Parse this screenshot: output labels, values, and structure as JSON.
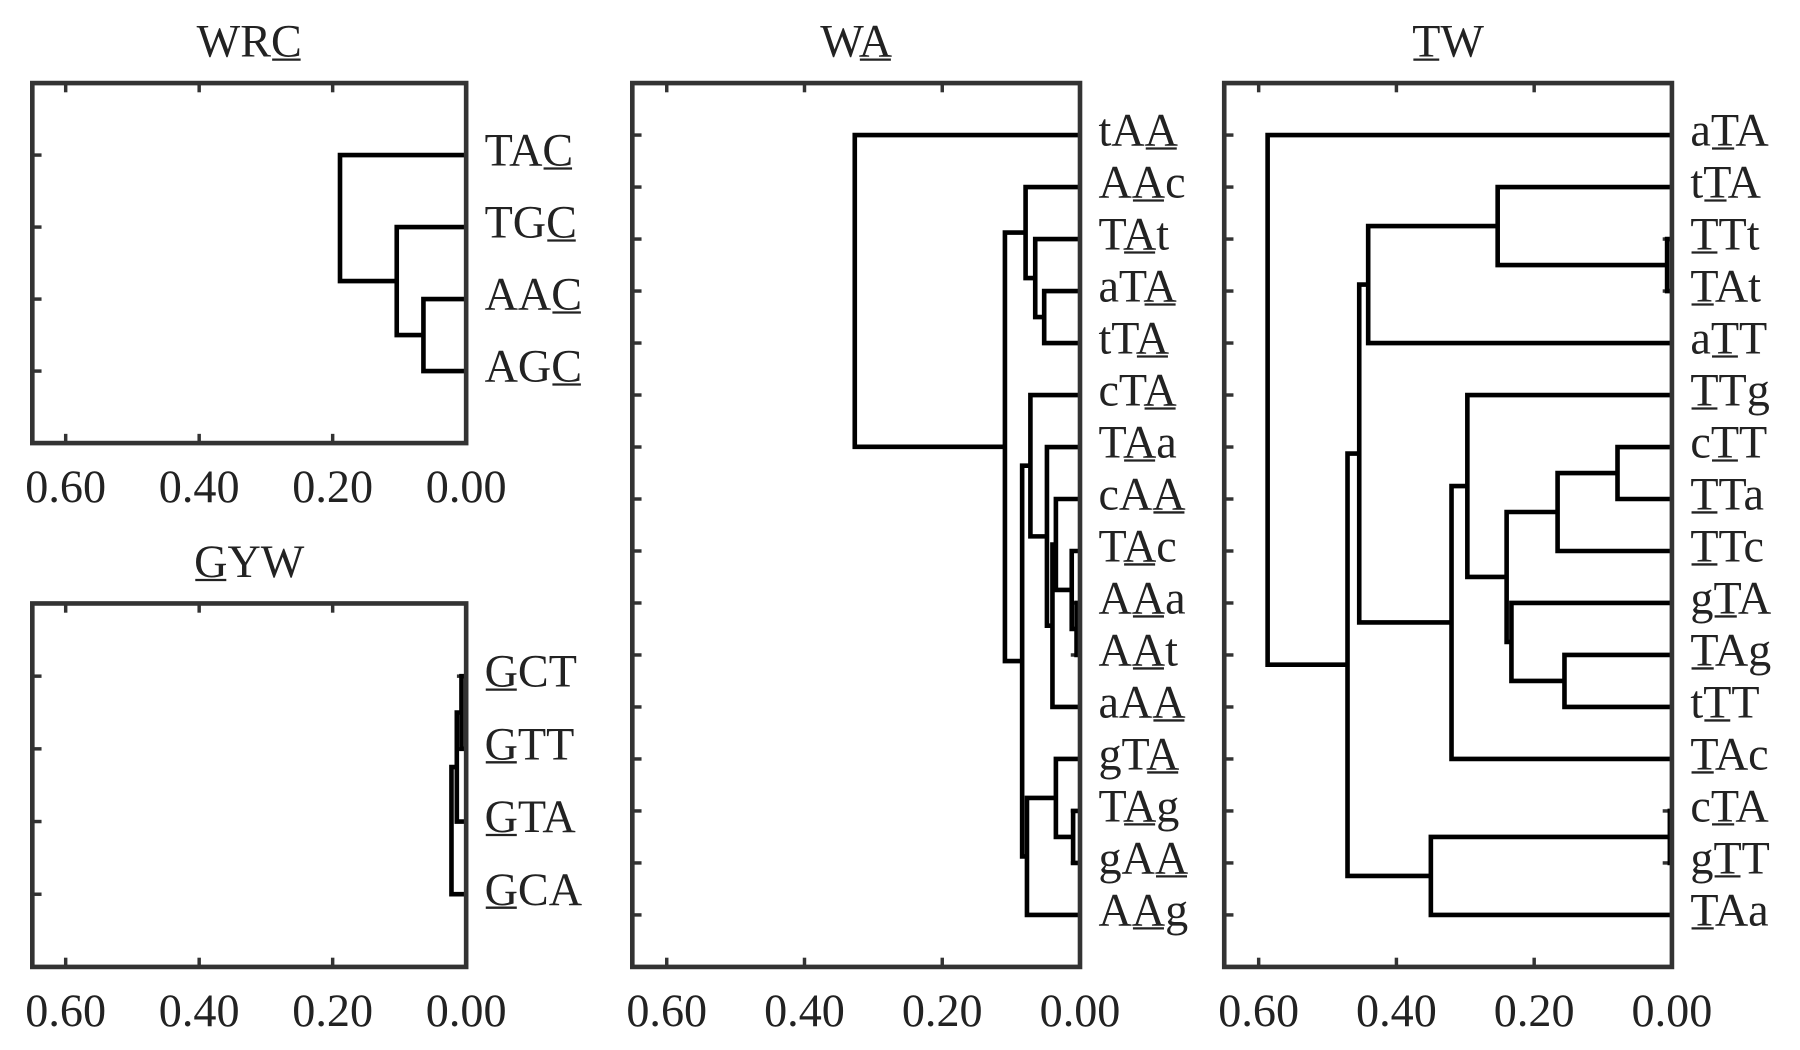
{
  "chart_data": [
    {
      "type": "dendrogram",
      "title": "WRC",
      "title_underline": 2,
      "categories": [
        "TAC",
        "TGC",
        "AAC",
        "AGC"
      ],
      "underline": [
        2,
        2,
        2,
        2
      ],
      "merges": [
        [
          2,
          3,
          0.064
        ],
        [
          1,
          4,
          0.104
        ],
        [
          0,
          5,
          0.189
        ]
      ],
      "xlim": [
        0.65,
        0
      ],
      "xticks": [
        {
          "value": 0.6,
          "label": "0.60"
        },
        {
          "value": 0.4,
          "label": "0.40"
        },
        {
          "value": 0.2,
          "label": "0.20"
        },
        {
          "value": 0,
          "label": "0.00"
        }
      ]
    },
    {
      "type": "dendrogram",
      "title": "GYW",
      "title_underline": 0,
      "categories": [
        "GCT",
        "GTT",
        "GTA",
        "GCA"
      ],
      "underline": [
        0,
        0,
        0,
        0
      ],
      "merges": [
        [
          0,
          1,
          0.007
        ],
        [
          4,
          2,
          0.014
        ],
        [
          5,
          3,
          0.022
        ]
      ],
      "xlim": [
        0.65,
        0
      ],
      "xticks": [
        {
          "value": 0.6,
          "label": "0.60"
        },
        {
          "value": 0.4,
          "label": "0.40"
        },
        {
          "value": 0.2,
          "label": "0.20"
        },
        {
          "value": 0,
          "label": "0.00"
        }
      ]
    },
    {
      "type": "dendrogram",
      "title": "WA",
      "title_underline": 1,
      "categories": [
        "tAA",
        "AAc",
        "TAt",
        "aTA",
        "tTA",
        "cTA",
        "TAa",
        "cAA",
        "TAc",
        "AAa",
        "AAt",
        "aAA",
        "gTA",
        "TAg",
        "gAA",
        "AAg"
      ],
      "underline": [
        2,
        1,
        1,
        2,
        2,
        2,
        1,
        2,
        1,
        1,
        1,
        2,
        2,
        1,
        2,
        1
      ],
      "merges": [
        [
          3,
          4,
          0.052
        ],
        [
          2,
          16,
          0.065
        ],
        [
          1,
          17,
          0.079
        ],
        [
          9,
          10,
          0.005
        ],
        [
          8,
          19,
          0.012
        ],
        [
          7,
          20,
          0.035
        ],
        [
          21,
          11,
          0.04
        ],
        [
          6,
          22,
          0.048
        ],
        [
          5,
          23,
          0.072
        ],
        [
          13,
          14,
          0.01
        ],
        [
          12,
          25,
          0.035
        ],
        [
          26,
          15,
          0.077
        ],
        [
          24,
          27,
          0.084
        ],
        [
          18,
          28,
          0.109
        ],
        [
          0,
          29,
          0.327
        ]
      ],
      "xlim": [
        0.65,
        0
      ],
      "xticks": [
        {
          "value": 0.6,
          "label": "0.60"
        },
        {
          "value": 0.4,
          "label": "0.40"
        },
        {
          "value": 0.2,
          "label": "0.20"
        },
        {
          "value": 0,
          "label": "0.00"
        }
      ]
    },
    {
      "type": "dendrogram",
      "title": "TW",
      "title_underline": 0,
      "categories": [
        "aTA",
        "tTA",
        "TTt",
        "TAt",
        "aTT",
        "TTg",
        "cTT",
        "TTa",
        "TTc",
        "gTA",
        "TAg",
        "tTT",
        "TAc",
        "cTA",
        "gTT",
        "TAa"
      ],
      "underline": [
        1,
        1,
        0,
        0,
        1,
        0,
        1,
        0,
        0,
        1,
        0,
        1,
        0,
        1,
        1,
        0
      ],
      "merges": [
        [
          2,
          3,
          0.007
        ],
        [
          1,
          16,
          0.253
        ],
        [
          17,
          4,
          0.441
        ],
        [
          6,
          7,
          0.079
        ],
        [
          19,
          8,
          0.166
        ],
        [
          10,
          11,
          0.156
        ],
        [
          9,
          21,
          0.233
        ],
        [
          20,
          22,
          0.24
        ],
        [
          5,
          23,
          0.297
        ],
        [
          24,
          12,
          0.32
        ],
        [
          18,
          25,
          0.454
        ],
        [
          13,
          14,
          0.003
        ],
        [
          27,
          15,
          0.35
        ],
        [
          26,
          28,
          0.471
        ],
        [
          0,
          29,
          0.587
        ]
      ],
      "xlim": [
        0.65,
        0
      ],
      "xticks": [
        {
          "value": 0.6,
          "label": "0.60"
        },
        {
          "value": 0.4,
          "label": "0.40"
        },
        {
          "value": 0.2,
          "label": "0.20"
        },
        {
          "value": 0,
          "label": "0.00"
        }
      ]
    }
  ]
}
